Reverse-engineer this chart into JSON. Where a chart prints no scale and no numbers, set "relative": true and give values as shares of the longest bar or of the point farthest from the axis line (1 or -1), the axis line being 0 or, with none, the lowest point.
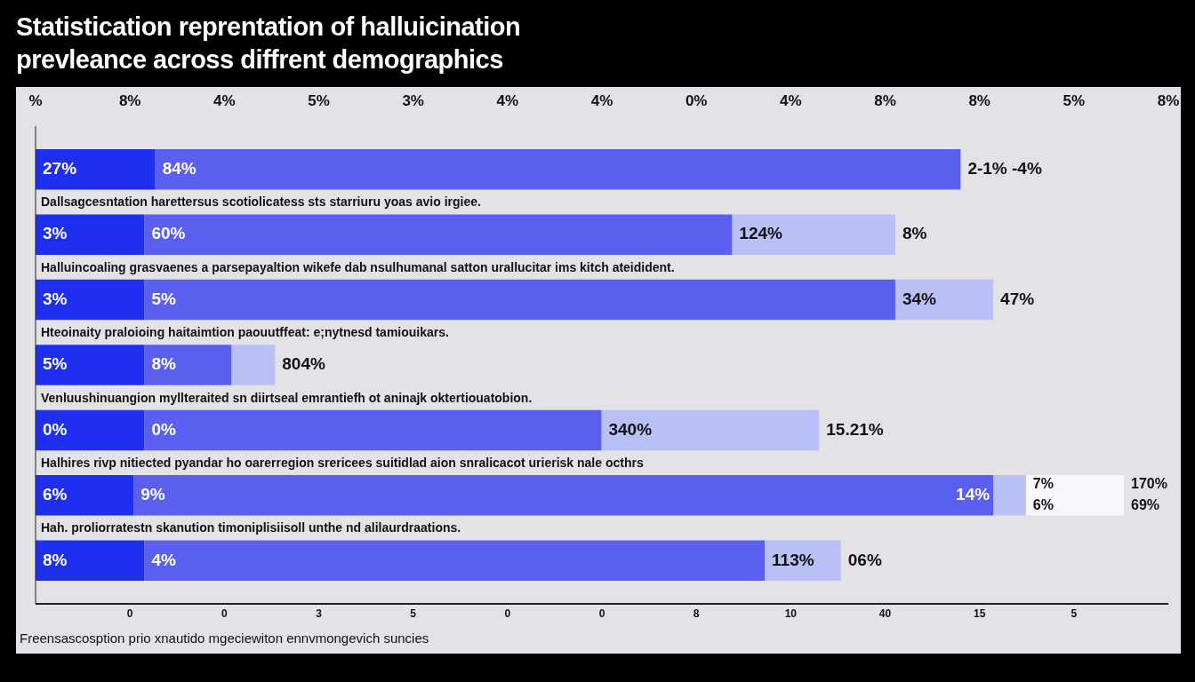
{
  "chart_data": {
    "type": "bar",
    "orientation": "horizontal",
    "stacked": true,
    "relative": true,
    "title": "Statistication reprentation of halluicination prevleance across diffrent demographics",
    "categories": [
      null,
      "Dallsagcesntation harettersus scotiolicatess sts starriuru yoas avio irgiee.",
      "Halluincoaling grasvaenes a parsepayaltion wikefe dab nsulhumanal satton urallucitar ims kitch ateidident.",
      "Hteoinaity praloioing haitaimtion paouutffeat: e;nytnesd tamiouikars.",
      "Venluushinuangion myllteraited sn diirtseal emrantiefh ot aninajk oktertiouatobion.",
      "Halhires rivp nitiected pyandar ho oarerregion srericees suitidlad aion snralicacot urierisk nale octhrs",
      "Hah. proliorratestn skanution timoniplisiisoll unthe nd alilaurdraations."
    ],
    "series": [
      {
        "color": "#1f2ff0",
        "values": [
          0.11,
          0.1,
          0.1,
          0.1,
          0.1,
          0.09,
          0.1
        ]
      },
      {
        "color": "#5a5ff0",
        "values": [
          0.74,
          0.54,
          0.69,
          0.08,
          0.42,
          0.79,
          0.57
        ]
      },
      {
        "color": "#b8c0f5",
        "values": [
          null,
          0.15,
          0.09,
          0.04,
          0.2,
          0.03,
          0.07
        ]
      },
      {
        "color": "#f8f8fc",
        "values": [
          null,
          null,
          null,
          null,
          null,
          0.09,
          null
        ]
      }
    ],
    "annotations": [
      {
        "text": "27%",
        "x": 0
      },
      {
        "text": "84%",
        "x": 0.11
      },
      {
        "text": "2-1% -4%",
        "x": 0.85
      },
      {
        "text": "8%",
        "x": 0.79,
        "y": "Dallsagcesntation harettersus scotiolicatess sts starriuru yoas avio irgiee."
      },
      {
        "text": "47%",
        "x": 0.88,
        "y": "Halluincoaling grasvaenes a parsepayaltion wikefe dab nsulhumanal satton urallucitar ims kitch ateidident."
      },
      {
        "text": "804%",
        "x": 0.22,
        "y": "Hteoinaity praloioing haitaimtion paouutffeat: e;nytnesd tamiouikars."
      },
      {
        "text": "15.21%",
        "x": 0.72,
        "y": "Venluushinuangion myllteraited sn diirtseal emrantiefh ot aninajk oktertiouatobion."
      },
      {
        "text": "06%",
        "x": 0.74,
        "y": "Hah. proliorratestn skanution timoniplisiisoll unthe nd alilaurdraations."
      },
      {
        "text": "3%",
        "x": 0,
        "y": "Dallsagcesntation harettersus scotiolicatess sts starriuru yoas avio irgiee."
      },
      {
        "text": "60%",
        "x": 0.1,
        "y": "Dallsagcesntation harettersus scotiolicatess sts starriuru yoas avio irgiee."
      },
      {
        "text": "124%",
        "x": 0.64,
        "y": "Dallsagcesntation harettersus scotiolicatess sts starriuru yoas avio irgiee."
      },
      {
        "text": "3%",
        "x": 0,
        "y": "Halluincoaling grasvaenes a parsepayaltion wikefe dab nsulhumanal satton urallucitar ims kitch ateidident."
      },
      {
        "text": "5%",
        "x": 0.1,
        "y": "Halluincoaling grasvaenes a parsepayaltion wikefe dab nsulhumanal satton urallucitar ims kitch ateidident."
      },
      {
        "text": "34%",
        "x": 0.79,
        "y": "Halluincoaling grasvaenes a parsepayaltion wikefe dab nsulhumanal satton urallucitar ims kitch ateidident."
      },
      {
        "text": "5%",
        "x": 0,
        "y": "Hteoinaity praloioing haitaimtion paouutffeat: e;nytnesd tamiouikars."
      },
      {
        "text": "8%",
        "x": 0.1,
        "y": "Hteoinaity praloioing haitaimtion paouutffeat: e;nytnesd tamiouikars."
      },
      {
        "text": "0%",
        "x": 0,
        "y": "Venluushinuangion myllteraited sn diirtseal emrantiefh ot aninajk oktertiouatobion."
      },
      {
        "text": "0%",
        "x": 0.1,
        "y": "Venluushinuangion myllteraited sn diirtseal emrantiefh ot aninajk oktertiouatobion."
      },
      {
        "text": "340%",
        "x": 0.52,
        "y": "Venluushinuangion myllteraited sn diirtseal emrantiefh ot aninajk oktertiouatobion."
      },
      {
        "text": "6%",
        "x": 0,
        "y": "Halhires rivp nitiected pyandar ho oarerregion srericees suitidlad aion snralicacot urierisk nale octhrs"
      },
      {
        "text": "9%",
        "x": 0.09,
        "y": "Halhires rivp nitiected pyandar ho oarerregion srericees suitidlad aion snralicacot urierisk nale octhrs"
      },
      {
        "text": "14%",
        "x": 0.88,
        "y": "Halhires rivp nitiected pyandar ho oarerregion srericees suitidlad aion snralicacot urierisk nale octhrs"
      },
      {
        "text": "7%",
        "x": 0.91,
        "y": "Halhires rivp nitiected pyandar ho oarerregion srericees suitidlad aion snralicacot urierisk nale octhrs"
      },
      {
        "text": "6%",
        "x": 0.91,
        "y": "Halhires rivp nitiected pyandar ho oarerregion srericees suitidlad aion snralicacot urierisk nale octhrs"
      },
      {
        "text": "170%",
        "x": 1,
        "y": "Halhires rivp nitiected pyandar ho oarerregion srericees suitidlad aion snralicacot urierisk nale octhrs"
      },
      {
        "text": "69%",
        "x": 1,
        "y": "Halhires rivp nitiected pyandar ho oarerregion srericees suitidlad aion snralicacot urierisk nale octhrs"
      },
      {
        "text": "8%",
        "x": 0,
        "y": "Hah. proliorratestn skanution timoniplisiisoll unthe nd alilaurdraations."
      },
      {
        "text": "4%",
        "x": 0.1,
        "y": "Hah. proliorratestn skanution timoniplisiisoll unthe nd alilaurdraations."
      },
      {
        "text": "113%",
        "x": 0.67,
        "y": "Hah. proliorratestn skanution timoniplisiisoll unthe nd alilaurdraations."
      },
      "% 8% 4% 5% 3% 4% 4% 0% 4% 8% 8% 5% 8%",
      "0 0 3 5 0 0 8 10 40 15 5",
      "Freensascosption prio xnautido mgeciewiton ennvmongevich suncies"
    ],
    "legend": false
  }
}
